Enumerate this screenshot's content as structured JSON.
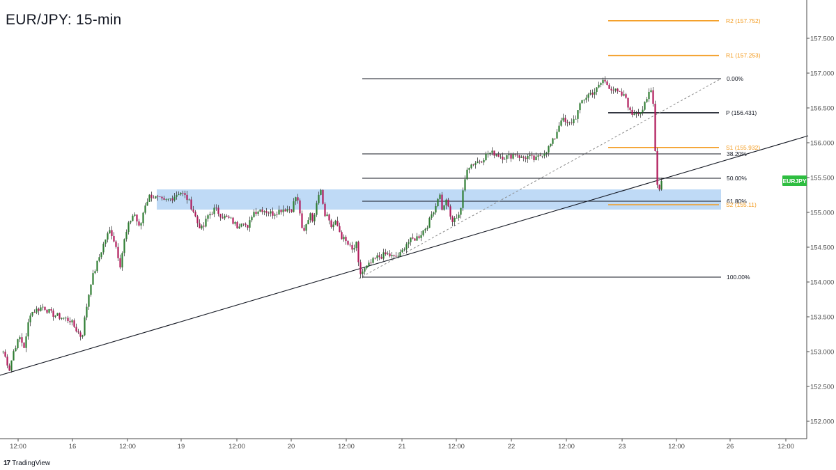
{
  "chart_data": {
    "type": "candlestick",
    "title": "EUR/JPY: 15-min",
    "symbol": "EURJPY",
    "ylim": [
      151.75,
      158.05
    ],
    "y_ticks": [
      "152.000",
      "152.500",
      "153.000",
      "153.500",
      "154.000",
      "154.500",
      "155.000",
      "155.500",
      "156.000",
      "156.500",
      "157.000",
      "157.500"
    ],
    "x_ticks": [
      "12:00",
      "16",
      "12:00",
      "19",
      "12:00",
      "20",
      "12:00",
      "21",
      "12:00",
      "22",
      "12:00",
      "23",
      "12:00",
      "26",
      "12:00"
    ],
    "price_anchors": [
      [
        0,
        153.1
      ],
      [
        6,
        152.95
      ],
      [
        13,
        152.75
      ],
      [
        20,
        153.05
      ],
      [
        28,
        153.2
      ],
      [
        35,
        153.05
      ],
      [
        42,
        153.55
      ],
      [
        52,
        153.6
      ],
      [
        62,
        153.65
      ],
      [
        72,
        153.55
      ],
      [
        85,
        153.5
      ],
      [
        100,
        153.45
      ],
      [
        110,
        153.3
      ],
      [
        117,
        153.2
      ],
      [
        123,
        153.6
      ],
      [
        130,
        154.0
      ],
      [
        140,
        154.3
      ],
      [
        150,
        154.6
      ],
      [
        158,
        154.75
      ],
      [
        165,
        154.55
      ],
      [
        172,
        154.25
      ],
      [
        178,
        154.6
      ],
      [
        185,
        154.85
      ],
      [
        192,
        155.0
      ],
      [
        200,
        154.75
      ],
      [
        207,
        155.1
      ],
      [
        215,
        155.25
      ],
      [
        225,
        155.2
      ],
      [
        235,
        155.15
      ],
      [
        245,
        155.2
      ],
      [
        258,
        155.3
      ],
      [
        268,
        155.2
      ],
      [
        276,
        155.05
      ],
      [
        283,
        154.85
      ],
      [
        290,
        154.75
      ],
      [
        298,
        154.95
      ],
      [
        308,
        155.05
      ],
      [
        318,
        154.95
      ],
      [
        330,
        154.9
      ],
      [
        340,
        154.8
      ],
      [
        348,
        154.9
      ],
      [
        355,
        154.75
      ],
      [
        362,
        155.0
      ],
      [
        375,
        155.05
      ],
      [
        390,
        154.98
      ],
      [
        405,
        155.05
      ],
      [
        418,
        155.05
      ],
      [
        425,
        155.25
      ],
      [
        430,
        155.0
      ],
      [
        434,
        154.65
      ],
      [
        440,
        154.85
      ],
      [
        445,
        155.0
      ],
      [
        450,
        154.85
      ],
      [
        455,
        155.25
      ],
      [
        460,
        155.35
      ],
      [
        465,
        155.0
      ],
      [
        470,
        154.95
      ],
      [
        475,
        154.8
      ],
      [
        482,
        154.85
      ],
      [
        490,
        154.65
      ],
      [
        498,
        154.55
      ],
      [
        505,
        154.45
      ],
      [
        512,
        154.55
      ],
      [
        515,
        154.1
      ],
      [
        520,
        154.15
      ],
      [
        530,
        154.25
      ],
      [
        540,
        154.35
      ],
      [
        555,
        154.4
      ],
      [
        565,
        154.35
      ],
      [
        575,
        154.4
      ],
      [
        582,
        154.55
      ],
      [
        590,
        154.6
      ],
      [
        600,
        154.65
      ],
      [
        608,
        154.75
      ],
      [
        615,
        154.85
      ],
      [
        620,
        155.0
      ],
      [
        625,
        155.1
      ],
      [
        630,
        155.3
      ],
      [
        635,
        155.0
      ],
      [
        640,
        155.2
      ],
      [
        645,
        154.95
      ],
      [
        650,
        154.85
      ],
      [
        655,
        154.95
      ],
      [
        660,
        155.0
      ],
      [
        665,
        155.35
      ],
      [
        670,
        155.65
      ],
      [
        678,
        155.7
      ],
      [
        690,
        155.75
      ],
      [
        700,
        155.85
      ],
      [
        710,
        155.85
      ],
      [
        720,
        155.8
      ],
      [
        730,
        155.8
      ],
      [
        740,
        155.85
      ],
      [
        748,
        155.78
      ],
      [
        758,
        155.8
      ],
      [
        768,
        155.75
      ],
      [
        778,
        155.85
      ],
      [
        785,
        155.9
      ],
      [
        795,
        156.05
      ],
      [
        805,
        156.35
      ],
      [
        815,
        156.25
      ],
      [
        825,
        156.35
      ],
      [
        835,
        156.6
      ],
      [
        845,
        156.7
      ],
      [
        855,
        156.75
      ],
      [
        865,
        156.9
      ],
      [
        875,
        156.8
      ],
      [
        888,
        156.7
      ],
      [
        898,
        156.65
      ],
      [
        905,
        156.4
      ],
      [
        912,
        156.45
      ],
      [
        920,
        156.45
      ],
      [
        928,
        156.6
      ],
      [
        933,
        156.8
      ],
      [
        938,
        156.55
      ],
      [
        941,
        155.55
      ],
      [
        945,
        155.3
      ],
      [
        950,
        155.45
      ]
    ],
    "fib_levels": [
      {
        "label": "0.00%",
        "value": 156.92
      },
      {
        "label": "38.20%",
        "value": 155.84
      },
      {
        "label": "50.00%",
        "value": 155.49
      },
      {
        "label": "61.80%",
        "value": 155.16
      },
      {
        "label": "100.00%",
        "value": 154.07
      }
    ],
    "pivots": [
      {
        "label": "R2 (157.752)",
        "value": 157.752,
        "color": "#f39b1f"
      },
      {
        "label": "R1 (157.253)",
        "value": 157.253,
        "color": "#f39b1f"
      },
      {
        "label": "P (156.431)",
        "value": 156.431,
        "color": "#131722"
      },
      {
        "label": "S1 (155.932)",
        "value": 155.932,
        "color": "#f39b1f"
      },
      {
        "label": "S2 (155.11)",
        "value": 155.11,
        "color": "#f39b1f"
      }
    ],
    "support_zone": {
      "from": 155.04,
      "to": 155.33
    },
    "trendline": {
      "start": [
        0,
        152.66
      ],
      "end": [
        1160,
        156.1
      ]
    },
    "fib_diagonal": {
      "start": [
        515,
        154.05
      ],
      "end": [
        1035,
        156.92
      ]
    },
    "colors": {
      "up": "#2e7d32",
      "down": "#b0195a",
      "wick": "#3a3a3a",
      "zone": "#a9cdf3",
      "pivot_orange": "#f39b1f",
      "symbol_tag": "#2ebd40"
    }
  },
  "branding": {
    "name": "TradingView",
    "mark": "17"
  }
}
